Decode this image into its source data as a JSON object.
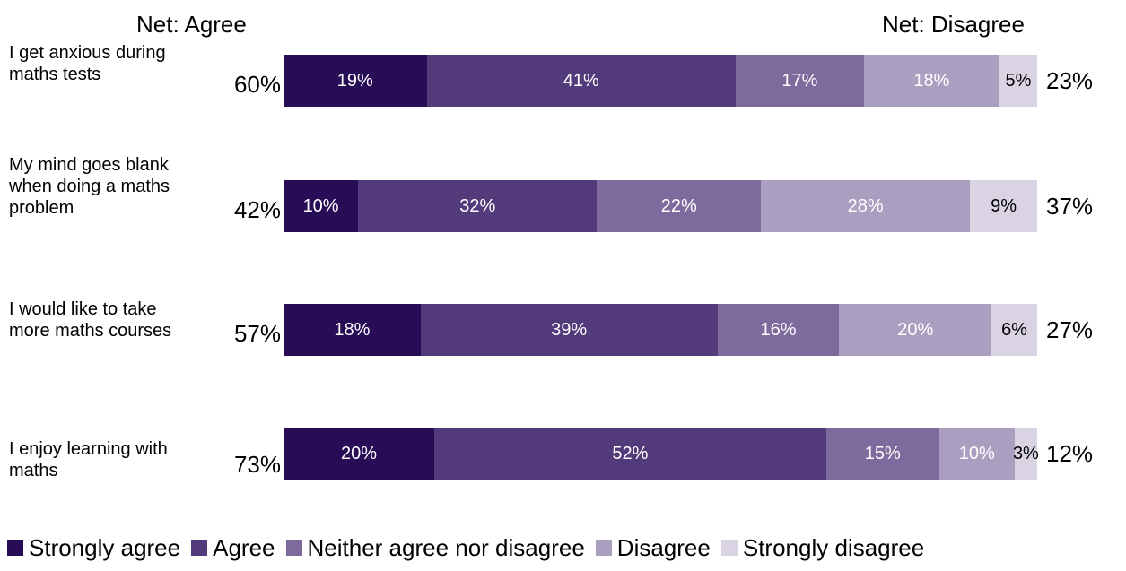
{
  "chart_data": {
    "type": "bar",
    "orientation": "horizontal",
    "stacked": true,
    "header_left": "Net: Agree",
    "header_right": "Net: Disagree",
    "categories": [
      "I get anxious during maths tests",
      "My mind goes blank when doing a maths problem",
      "I would like to take more maths courses",
      "I enjoy learning with maths"
    ],
    "net_agree": [
      "60%",
      "42%",
      "57%",
      "73%"
    ],
    "net_disagree": [
      "23%",
      "37%",
      "27%",
      "12%"
    ],
    "series": [
      {
        "name": "Strongly agree",
        "color": "#280c56",
        "text_color": "#ffffff",
        "values": [
          19,
          10,
          18,
          20
        ]
      },
      {
        "name": "Agree",
        "color": "#533a7b",
        "text_color": "#ffffff",
        "values": [
          41,
          32,
          39,
          52
        ]
      },
      {
        "name": "Neither agree nor disagree",
        "color": "#7e6a9c",
        "text_color": "#ffffff",
        "values": [
          17,
          22,
          16,
          15
        ]
      },
      {
        "name": "Disagree",
        "color": "#ab9fc1",
        "text_color": "#ffffff",
        "values": [
          18,
          28,
          20,
          10
        ]
      },
      {
        "name": "Strongly disagree",
        "color": "#d9d3e3",
        "text_color": "#000000",
        "values": [
          5,
          9,
          6,
          3
        ]
      }
    ],
    "legend_position": "bottom"
  }
}
